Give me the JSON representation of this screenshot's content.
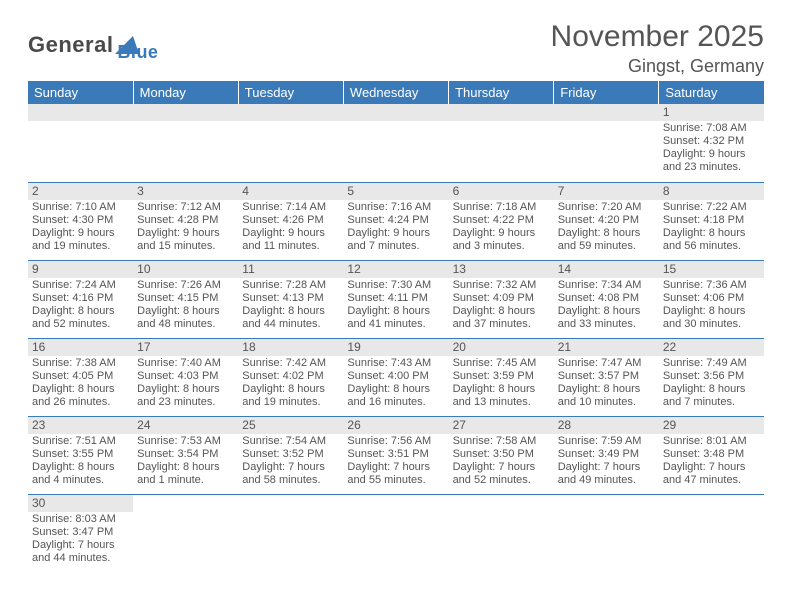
{
  "logo": {
    "part1": "General",
    "part2": "Blue"
  },
  "title": "November 2025",
  "location": "Gingst, Germany",
  "colors": {
    "header_bg": "#3a7ab8",
    "header_text": "#ffffff",
    "daynum_bg": "#e8e8e8",
    "border": "#3a7ab8",
    "text": "#555555",
    "logo_gray": "#4a4a4a",
    "logo_blue": "#3a7ab8"
  },
  "day_headers": [
    "Sunday",
    "Monday",
    "Tuesday",
    "Wednesday",
    "Thursday",
    "Friday",
    "Saturday"
  ],
  "weeks": [
    [
      {
        "n": "",
        "empty": true
      },
      {
        "n": "",
        "empty": true
      },
      {
        "n": "",
        "empty": true
      },
      {
        "n": "",
        "empty": true
      },
      {
        "n": "",
        "empty": true
      },
      {
        "n": "",
        "empty": true
      },
      {
        "n": "1",
        "sunrise": "Sunrise: 7:08 AM",
        "sunset": "Sunset: 4:32 PM",
        "daylight1": "Daylight: 9 hours",
        "daylight2": "and 23 minutes."
      }
    ],
    [
      {
        "n": "2",
        "sunrise": "Sunrise: 7:10 AM",
        "sunset": "Sunset: 4:30 PM",
        "daylight1": "Daylight: 9 hours",
        "daylight2": "and 19 minutes."
      },
      {
        "n": "3",
        "sunrise": "Sunrise: 7:12 AM",
        "sunset": "Sunset: 4:28 PM",
        "daylight1": "Daylight: 9 hours",
        "daylight2": "and 15 minutes."
      },
      {
        "n": "4",
        "sunrise": "Sunrise: 7:14 AM",
        "sunset": "Sunset: 4:26 PM",
        "daylight1": "Daylight: 9 hours",
        "daylight2": "and 11 minutes."
      },
      {
        "n": "5",
        "sunrise": "Sunrise: 7:16 AM",
        "sunset": "Sunset: 4:24 PM",
        "daylight1": "Daylight: 9 hours",
        "daylight2": "and 7 minutes."
      },
      {
        "n": "6",
        "sunrise": "Sunrise: 7:18 AM",
        "sunset": "Sunset: 4:22 PM",
        "daylight1": "Daylight: 9 hours",
        "daylight2": "and 3 minutes."
      },
      {
        "n": "7",
        "sunrise": "Sunrise: 7:20 AM",
        "sunset": "Sunset: 4:20 PM",
        "daylight1": "Daylight: 8 hours",
        "daylight2": "and 59 minutes."
      },
      {
        "n": "8",
        "sunrise": "Sunrise: 7:22 AM",
        "sunset": "Sunset: 4:18 PM",
        "daylight1": "Daylight: 8 hours",
        "daylight2": "and 56 minutes."
      }
    ],
    [
      {
        "n": "9",
        "sunrise": "Sunrise: 7:24 AM",
        "sunset": "Sunset: 4:16 PM",
        "daylight1": "Daylight: 8 hours",
        "daylight2": "and 52 minutes."
      },
      {
        "n": "10",
        "sunrise": "Sunrise: 7:26 AM",
        "sunset": "Sunset: 4:15 PM",
        "daylight1": "Daylight: 8 hours",
        "daylight2": "and 48 minutes."
      },
      {
        "n": "11",
        "sunrise": "Sunrise: 7:28 AM",
        "sunset": "Sunset: 4:13 PM",
        "daylight1": "Daylight: 8 hours",
        "daylight2": "and 44 minutes."
      },
      {
        "n": "12",
        "sunrise": "Sunrise: 7:30 AM",
        "sunset": "Sunset: 4:11 PM",
        "daylight1": "Daylight: 8 hours",
        "daylight2": "and 41 minutes."
      },
      {
        "n": "13",
        "sunrise": "Sunrise: 7:32 AM",
        "sunset": "Sunset: 4:09 PM",
        "daylight1": "Daylight: 8 hours",
        "daylight2": "and 37 minutes."
      },
      {
        "n": "14",
        "sunrise": "Sunrise: 7:34 AM",
        "sunset": "Sunset: 4:08 PM",
        "daylight1": "Daylight: 8 hours",
        "daylight2": "and 33 minutes."
      },
      {
        "n": "15",
        "sunrise": "Sunrise: 7:36 AM",
        "sunset": "Sunset: 4:06 PM",
        "daylight1": "Daylight: 8 hours",
        "daylight2": "and 30 minutes."
      }
    ],
    [
      {
        "n": "16",
        "sunrise": "Sunrise: 7:38 AM",
        "sunset": "Sunset: 4:05 PM",
        "daylight1": "Daylight: 8 hours",
        "daylight2": "and 26 minutes."
      },
      {
        "n": "17",
        "sunrise": "Sunrise: 7:40 AM",
        "sunset": "Sunset: 4:03 PM",
        "daylight1": "Daylight: 8 hours",
        "daylight2": "and 23 minutes."
      },
      {
        "n": "18",
        "sunrise": "Sunrise: 7:42 AM",
        "sunset": "Sunset: 4:02 PM",
        "daylight1": "Daylight: 8 hours",
        "daylight2": "and 19 minutes."
      },
      {
        "n": "19",
        "sunrise": "Sunrise: 7:43 AM",
        "sunset": "Sunset: 4:00 PM",
        "daylight1": "Daylight: 8 hours",
        "daylight2": "and 16 minutes."
      },
      {
        "n": "20",
        "sunrise": "Sunrise: 7:45 AM",
        "sunset": "Sunset: 3:59 PM",
        "daylight1": "Daylight: 8 hours",
        "daylight2": "and 13 minutes."
      },
      {
        "n": "21",
        "sunrise": "Sunrise: 7:47 AM",
        "sunset": "Sunset: 3:57 PM",
        "daylight1": "Daylight: 8 hours",
        "daylight2": "and 10 minutes."
      },
      {
        "n": "22",
        "sunrise": "Sunrise: 7:49 AM",
        "sunset": "Sunset: 3:56 PM",
        "daylight1": "Daylight: 8 hours",
        "daylight2": "and 7 minutes."
      }
    ],
    [
      {
        "n": "23",
        "sunrise": "Sunrise: 7:51 AM",
        "sunset": "Sunset: 3:55 PM",
        "daylight1": "Daylight: 8 hours",
        "daylight2": "and 4 minutes."
      },
      {
        "n": "24",
        "sunrise": "Sunrise: 7:53 AM",
        "sunset": "Sunset: 3:54 PM",
        "daylight1": "Daylight: 8 hours",
        "daylight2": "and 1 minute."
      },
      {
        "n": "25",
        "sunrise": "Sunrise: 7:54 AM",
        "sunset": "Sunset: 3:52 PM",
        "daylight1": "Daylight: 7 hours",
        "daylight2": "and 58 minutes."
      },
      {
        "n": "26",
        "sunrise": "Sunrise: 7:56 AM",
        "sunset": "Sunset: 3:51 PM",
        "daylight1": "Daylight: 7 hours",
        "daylight2": "and 55 minutes."
      },
      {
        "n": "27",
        "sunrise": "Sunrise: 7:58 AM",
        "sunset": "Sunset: 3:50 PM",
        "daylight1": "Daylight: 7 hours",
        "daylight2": "and 52 minutes."
      },
      {
        "n": "28",
        "sunrise": "Sunrise: 7:59 AM",
        "sunset": "Sunset: 3:49 PM",
        "daylight1": "Daylight: 7 hours",
        "daylight2": "and 49 minutes."
      },
      {
        "n": "29",
        "sunrise": "Sunrise: 8:01 AM",
        "sunset": "Sunset: 3:48 PM",
        "daylight1": "Daylight: 7 hours",
        "daylight2": "and 47 minutes."
      }
    ],
    [
      {
        "n": "30",
        "sunrise": "Sunrise: 8:03 AM",
        "sunset": "Sunset: 3:47 PM",
        "daylight1": "Daylight: 7 hours",
        "daylight2": "and 44 minutes."
      },
      {
        "n": "",
        "empty": true
      },
      {
        "n": "",
        "empty": true
      },
      {
        "n": "",
        "empty": true
      },
      {
        "n": "",
        "empty": true
      },
      {
        "n": "",
        "empty": true
      },
      {
        "n": "",
        "empty": true
      }
    ]
  ]
}
